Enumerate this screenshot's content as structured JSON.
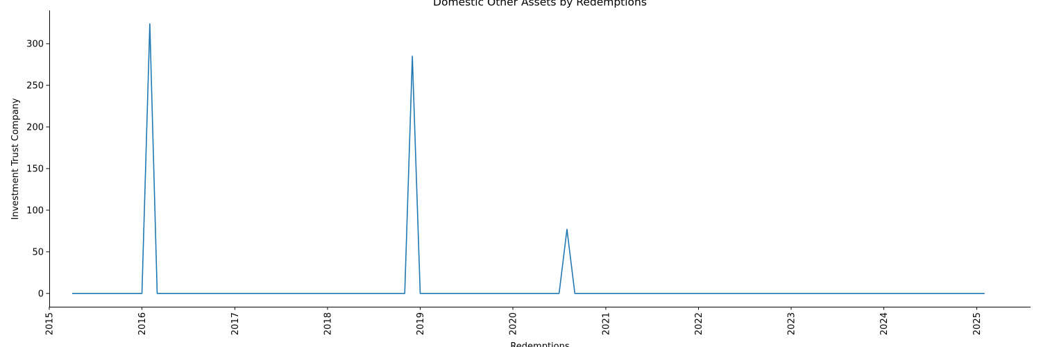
{
  "chart_data": {
    "type": "line",
    "title": "Domestic Other Assets by Redemptions",
    "xlabel": "Redemptions",
    "ylabel": "Investment Trust Company",
    "x_tick_labels": [
      "2015",
      "2016",
      "2017",
      "2018",
      "2019",
      "2020",
      "2021",
      "2022",
      "2023",
      "2024",
      "2025"
    ],
    "y_tick_labels": [
      "0",
      "50",
      "100",
      "150",
      "200",
      "250",
      "300"
    ],
    "y_ticks": [
      0,
      50,
      100,
      150,
      200,
      250,
      300
    ],
    "xlim": [
      "2015-01-01",
      "2025-08-01"
    ],
    "ylim": [
      -16,
      340
    ],
    "grid": false,
    "color": "#1f77b4",
    "series": [
      {
        "x": [
          "2015-04-01",
          "2016-01-01",
          "2016-02-01",
          "2016-03-01",
          "2018-11-01",
          "2018-12-01",
          "2019-01-01",
          "2020-07-01",
          "2020-08-01",
          "2020-09-01",
          "2025-02-01"
        ],
        "values": [
          0,
          0,
          324,
          0,
          0,
          285,
          0,
          0,
          77,
          0,
          0
        ]
      }
    ]
  }
}
